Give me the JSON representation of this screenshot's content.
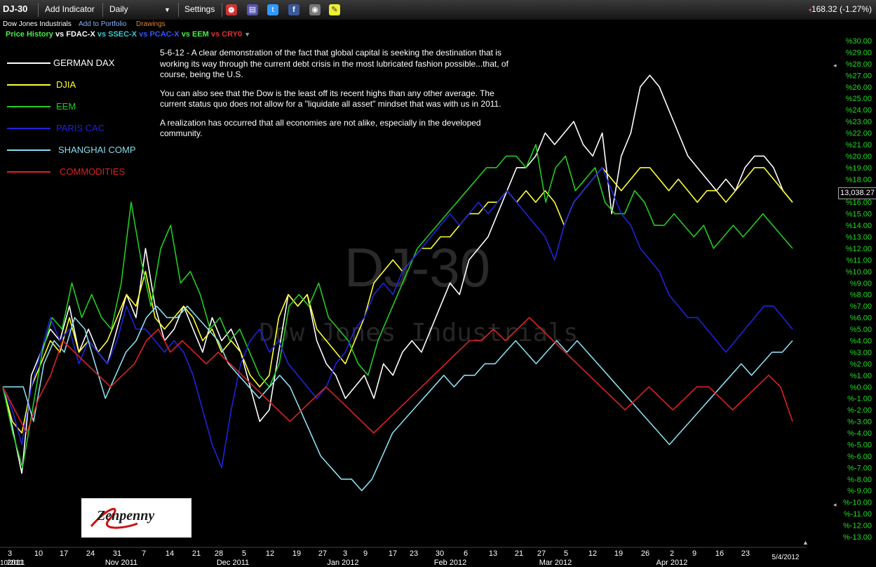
{
  "toolbar": {
    "symbol": "DJ-30",
    "add_indicator": "Add Indicator",
    "interval": "Daily",
    "settings": "Settings",
    "change": "-168.32 (-1.27%)",
    "change_icon": "down-arrow-icon",
    "icons": [
      "alarm-icon",
      "document-icon",
      "twitter-icon",
      "facebook-icon",
      "camera-icon",
      "note-icon"
    ]
  },
  "subbar": {
    "name": "Dow Jones Industrials",
    "add_to_portfolio": "Add to Portfolio",
    "drawings": "Drawings"
  },
  "comparison": {
    "price_history": "Price History",
    "vs1": "vs FDAC-X",
    "vs2": "vs SSEC-X",
    "vs3": "vs PCAC-X",
    "vs4": "vs EEM",
    "vs5": "vs CRY0"
  },
  "legend": [
    {
      "label": "GERMAN DAX",
      "color": "#ffffff"
    },
    {
      "label": "DJIA",
      "color": "#ffff33"
    },
    {
      "label": "EEM",
      "color": "#22cc22"
    },
    {
      "label": "PARIS CAC",
      "color": "#2222dd"
    },
    {
      "label": "SHANGHAI COMP",
      "color": "#88ddee"
    },
    {
      "label": "COMMODITIES",
      "color": "#dd2222"
    }
  ],
  "annotation": [
    "5-6-12 - A clear demonstration of the fact that global capital is seeking the destination that is working its way through the current debt crisis in the most lubricated fashion possible...that, of course, being the U.S.",
    "You can also see that the Dow is the least off its recent highs than any other average. The current status quo does not allow for a \"liquidate all asset\" mindset that was with us in 2011.",
    "A realization has occurred that all economies are not alike, especially in the developed community."
  ],
  "watermark": {
    "symbol": "DJ-30",
    "name": "Dow Jones Industrials"
  },
  "logo": {
    "text": "Zenpenny"
  },
  "last_price": "13,038.27",
  "colors": {
    "axis_text": "#22dd22",
    "change": "#ff2a2a",
    "symbol": "#ffd700"
  },
  "chart_data": {
    "type": "line",
    "ylim": [
      -13,
      30
    ],
    "y_unit": "%",
    "y_ticks": [
      "%30.00",
      "%29.00",
      "%28.00",
      "%27.00",
      "%26.00",
      "%25.00",
      "%24.00",
      "%23.00",
      "%22.00",
      "%21.00",
      "%20.00",
      "%19.00",
      "%18.00",
      "%17.00",
      "%16.00",
      "%15.00",
      "%14.00",
      "%13.00",
      "%12.00",
      "%11.00",
      "%10.00",
      "%9.00",
      "%8.00",
      "%7.00",
      "%6.00",
      "%5.00",
      "%4.00",
      "%3.00",
      "%2.00",
      "%1.00",
      "%0.00",
      "%-1.00",
      "%-2.00",
      "%-3.00",
      "%-4.00",
      "%-5.00",
      "%-6.00",
      "%-7.00",
      "%-8.00",
      "%-9.00",
      "%-10.00",
      "%-11.00",
      "%-12.00",
      "%-13.00"
    ],
    "x_day_ticks": [
      "3",
      "10",
      "17",
      "24",
      "31",
      "7",
      "14",
      "21",
      "28",
      "5",
      "12",
      "19",
      "27",
      "3",
      "9",
      "17",
      "23",
      "30",
      "6",
      "13",
      "21",
      "27",
      "5",
      "12",
      "19",
      "26",
      "2",
      "9",
      "16",
      "23"
    ],
    "x_month_labels": [
      "2011",
      "Nov 2011",
      "Dec 2011",
      "Jan 2012",
      "Feb 2012",
      "Mar 2012",
      "Apr 2012"
    ],
    "x_end_date": "5/4/2012",
    "x_start_overlap_label": "10/2011",
    "series": [
      {
        "name": "GERMAN DAX",
        "color": "#ffffff",
        "values": [
          0,
          -3.5,
          -7.5,
          1,
          3,
          5,
          4,
          7,
          3,
          5,
          3,
          2,
          5,
          8,
          6,
          12,
          7,
          4,
          5,
          7,
          5,
          3,
          6,
          4,
          5,
          3,
          0,
          -3,
          -2,
          3,
          8,
          7,
          8,
          4,
          2,
          1,
          -1,
          0,
          1,
          -1,
          2,
          1,
          3,
          4,
          3,
          5,
          7,
          9,
          8,
          11,
          12,
          13,
          15,
          17,
          19,
          19,
          20,
          22,
          21,
          22,
          23,
          21,
          20,
          22,
          15,
          20,
          22,
          26,
          27,
          26,
          24,
          22,
          20,
          19,
          18,
          17,
          18,
          17,
          19,
          20,
          20,
          19,
          17,
          16
        ]
      },
      {
        "name": "DJIA",
        "color": "#ffff33",
        "values": [
          0,
          -3,
          -4,
          0,
          2,
          4,
          3,
          6,
          3,
          4,
          3,
          4,
          6,
          8,
          7,
          10,
          6,
          5,
          6,
          7,
          6,
          4,
          5,
          3,
          4,
          3,
          1,
          0,
          1,
          6,
          8,
          7,
          8,
          5,
          4,
          3,
          2,
          4,
          6,
          9,
          10,
          11,
          10,
          11,
          12,
          12,
          13,
          13,
          14,
          15,
          15,
          16,
          16,
          17,
          16,
          17,
          16,
          17,
          16,
          14,
          16,
          17,
          18,
          19,
          18,
          17,
          18,
          19,
          19,
          18,
          17,
          18,
          17,
          16,
          17,
          17,
          16,
          17,
          18,
          19,
          19,
          18,
          17,
          16
        ]
      },
      {
        "name": "EEM",
        "color": "#22cc22",
        "values": [
          0,
          -4,
          -7,
          -2,
          3,
          6,
          5,
          9,
          6,
          8,
          6,
          5,
          9,
          16,
          11,
          7,
          12,
          14,
          9,
          10,
          8,
          5,
          6,
          4,
          5,
          3,
          1,
          0,
          2,
          7,
          8,
          7,
          9,
          6,
          5,
          4,
          2,
          1,
          4,
          6,
          8,
          10,
          12,
          13,
          14,
          15,
          16,
          17,
          18,
          19,
          19,
          20,
          20,
          19,
          21,
          16,
          19,
          20,
          17,
          18,
          19,
          16,
          15,
          15,
          17,
          16,
          14,
          14,
          15,
          14,
          13,
          14,
          12,
          13,
          14,
          13,
          14,
          15,
          14,
          13,
          12
        ]
      },
      {
        "name": "PARIS CAC",
        "color": "#2222dd",
        "values": [
          0,
          -2,
          -5,
          0,
          3,
          6,
          4,
          5,
          2,
          4,
          3,
          2,
          4,
          7,
          5,
          5,
          4,
          3,
          4,
          3,
          1,
          -2,
          -5,
          -7,
          -2,
          2,
          4,
          5,
          3,
          4,
          2,
          1,
          0,
          -1,
          0,
          2,
          3,
          5,
          6,
          8,
          9,
          8,
          10,
          11,
          12,
          13,
          14,
          15,
          14,
          15,
          16,
          15,
          16,
          17,
          16,
          15,
          14,
          13,
          11,
          14,
          16,
          17,
          18,
          19,
          17,
          15,
          14,
          12,
          11,
          10,
          8,
          7,
          6,
          6,
          5,
          4,
          3,
          4,
          5,
          6,
          7,
          7,
          6,
          5
        ]
      },
      {
        "name": "SHANGHAI COMP",
        "color": "#88ddee",
        "values": [
          0,
          0,
          0,
          -3,
          2,
          4,
          3,
          6,
          5,
          2,
          -1,
          1,
          3,
          4,
          6,
          7,
          6,
          6,
          7,
          6,
          5,
          4,
          2,
          1,
          0,
          -1,
          0,
          1,
          0,
          -2,
          -4,
          -6,
          -7,
          -8,
          -8,
          -9,
          -8,
          -6,
          -4,
          -3,
          -2,
          -1,
          0,
          1,
          0,
          1,
          1,
          2,
          2,
          3,
          4,
          3,
          2,
          3,
          4,
          3,
          4,
          3,
          2,
          1,
          0,
          -1,
          -2,
          -3,
          -4,
          -5,
          -4,
          -3,
          -2,
          -1,
          0,
          1,
          2,
          1,
          2,
          3,
          3,
          4
        ]
      },
      {
        "name": "COMMODITIES",
        "color": "#dd2222",
        "values": [
          0,
          -2,
          -4,
          -1,
          1,
          4,
          3,
          2,
          1,
          0,
          1,
          2,
          4,
          5,
          3,
          4,
          3,
          2,
          3,
          2,
          1,
          0,
          -1,
          -2,
          -3,
          -2,
          -1,
          0,
          -1,
          -2,
          -3,
          -4,
          -3,
          -2,
          -1,
          0,
          1,
          2,
          3,
          4,
          4,
          5,
          4,
          5,
          6,
          5,
          4,
          3,
          2,
          1,
          0,
          -1,
          -2,
          -1,
          0,
          -1,
          -2,
          -1,
          0,
          0,
          -1,
          -2,
          -1,
          0,
          1,
          0,
          -3
        ]
      }
    ]
  }
}
